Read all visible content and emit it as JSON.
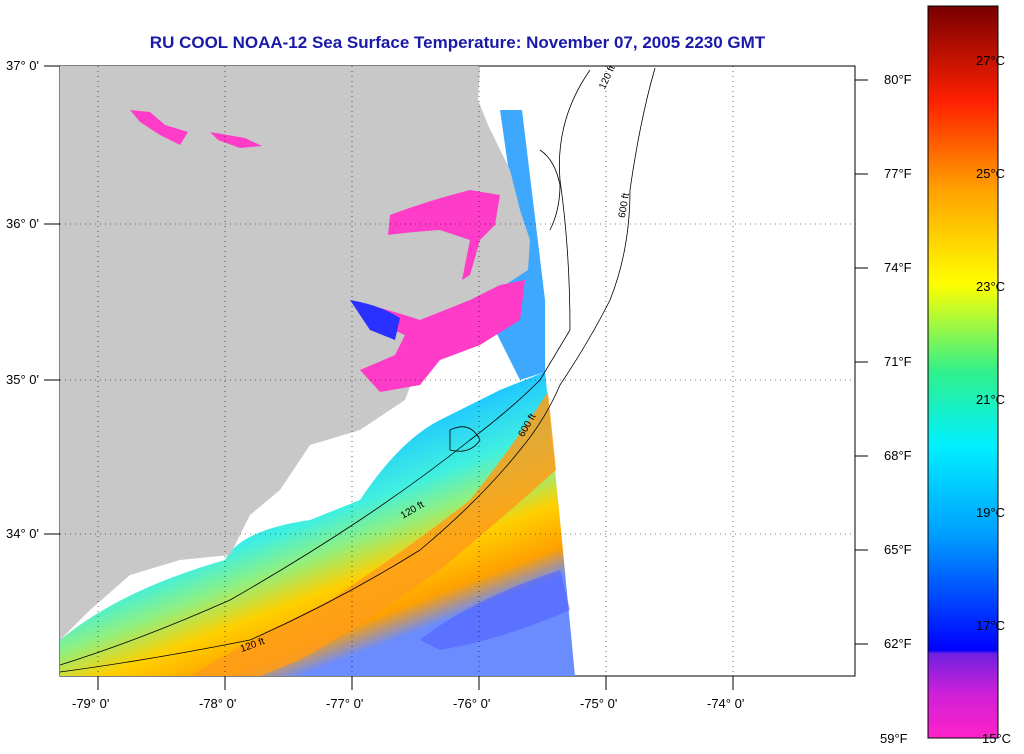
{
  "title": "RU COOL  NOAA-12  Sea Surface Temperature:  November 07, 2005 2230 GMT",
  "lat_labels": [
    "37° 0'",
    "36° 0'",
    "35° 0'",
    "34° 0'"
  ],
  "lon_labels": [
    "-79° 0'",
    "-78° 0'",
    "-77° 0'",
    "-76° 0'",
    "-75° 0'",
    "-74° 0'"
  ],
  "colorbar": {
    "f_labels": [
      "80°F",
      "77°F",
      "74°F",
      "71°F",
      "68°F",
      "65°F",
      "62°F",
      "59°F"
    ],
    "c_labels": [
      "27°C",
      "25°C",
      "23°C",
      "21°C",
      "19°C",
      "17°C",
      "15°C"
    ],
    "stops": [
      "#ff22c8",
      "#a020e0",
      "#0000ff",
      "#00c8ff",
      "#3cf0a0",
      "#ffff00",
      "#ffa000",
      "#ff2000",
      "#780000"
    ]
  },
  "contour_labels": [
    "120 ft",
    "600 ft"
  ],
  "colors": {
    "land": "#c8c8c8",
    "title": "#1a1aa8",
    "no_data": "#ffffff"
  }
}
